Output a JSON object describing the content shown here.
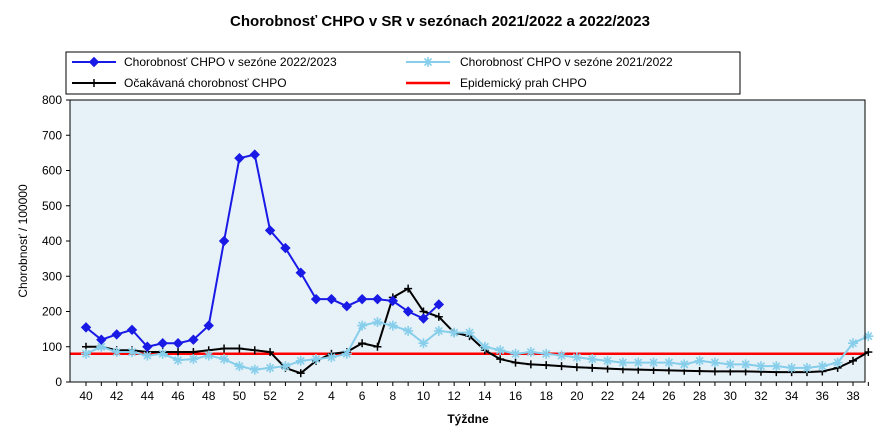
{
  "chart_data": {
    "type": "line",
    "title": "Chorobnosť CHPO v SR v sezónach 2021/2022 a 2022/2023",
    "xlabel": "Týždne",
    "ylabel": "Chorobnosť / 100000",
    "ylim": [
      0,
      800
    ],
    "yticks": [
      0,
      100,
      200,
      300,
      400,
      500,
      600,
      700,
      800
    ],
    "weeks": [
      "40",
      "41",
      "42",
      "43",
      "44",
      "45",
      "46",
      "47",
      "48",
      "49",
      "50",
      "51",
      "52",
      "1",
      "2",
      "3",
      "4",
      "5",
      "6",
      "7",
      "8",
      "9",
      "10",
      "11",
      "12",
      "13",
      "14",
      "15",
      "16",
      "17",
      "18",
      "19",
      "20",
      "21",
      "22",
      "23",
      "24",
      "25",
      "26",
      "27",
      "28",
      "29",
      "30",
      "31",
      "32",
      "33",
      "34",
      "35",
      "36",
      "37",
      "38",
      "39"
    ],
    "xtick_labels": [
      "40",
      "42",
      "44",
      "46",
      "48",
      "50",
      "52",
      "2",
      "4",
      "6",
      "8",
      "10",
      "12",
      "14",
      "16",
      "18",
      "20",
      "22",
      "24",
      "26",
      "28",
      "30",
      "32",
      "34",
      "36",
      "38"
    ],
    "series": [
      {
        "name": "Chorobnosť CHPO v sezóne 2022/2023",
        "color": "#1a1ae6",
        "marker": "diamond",
        "values": [
          155,
          120,
          135,
          148,
          100,
          110,
          110,
          120,
          160,
          400,
          635,
          645,
          430,
          380,
          310,
          235,
          235,
          215,
          235,
          235,
          230,
          200,
          180,
          220
        ]
      },
      {
        "name": "Chorobnosť CHPO v sezóne 2021/2022",
        "color": "#87ceeb",
        "marker": "asterisk",
        "values": [
          80,
          100,
          85,
          85,
          75,
          80,
          62,
          65,
          75,
          65,
          45,
          35,
          40,
          45,
          60,
          65,
          70,
          80,
          160,
          170,
          160,
          145,
          110,
          145,
          140,
          140,
          100,
          90,
          80,
          85,
          80,
          75,
          70,
          65,
          60,
          55,
          55,
          55,
          55,
          50,
          60,
          55,
          50,
          50,
          45,
          45,
          40,
          40,
          45,
          55,
          110,
          130
        ]
      },
      {
        "name": "Očakávaná chorobnosť CHPO",
        "color": "#000000",
        "marker": "plus",
        "values": [
          100,
          100,
          90,
          90,
          85,
          85,
          85,
          85,
          90,
          95,
          95,
          90,
          85,
          40,
          25,
          60,
          80,
          85,
          110,
          100,
          240,
          265,
          200,
          185,
          140,
          130,
          90,
          65,
          55,
          50,
          48,
          45,
          42,
          40,
          38,
          36,
          35,
          34,
          33,
          32,
          31,
          30,
          30,
          30,
          29,
          28,
          28,
          28,
          30,
          40,
          60,
          85
        ]
      },
      {
        "name": "Epidemický prah CHPO",
        "color": "#ff0000",
        "marker": "none",
        "values": [
          80
        ]
      }
    ]
  }
}
